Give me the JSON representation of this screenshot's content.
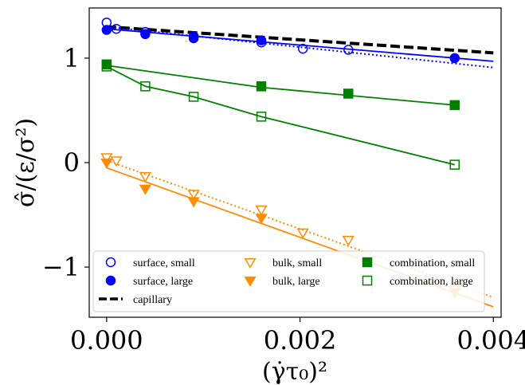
{
  "chart_data": {
    "type": "scatter",
    "xlabel": "(γ̇τ₀)²",
    "ylabel": "σ̂/(ε/σ²)",
    "xlim": [
      -0.00018,
      0.00408
    ],
    "ylim": [
      -1.48,
      1.48
    ],
    "x_ticks": [
      0.0,
      0.002,
      0.004
    ],
    "x_tick_labels": [
      "0.000",
      "0.002",
      "0.004"
    ],
    "y_ticks": [
      -1,
      0,
      1
    ],
    "y_tick_labels": [
      "−1",
      "0",
      "1"
    ],
    "grid": false,
    "legend_position": "lower-center",
    "series": [
      {
        "name": "surface, small",
        "marker": "circle-open",
        "color": "#0000ff",
        "points": [
          [
            0.0,
            1.34
          ],
          [
            0.0001,
            1.28
          ],
          [
            0.0004,
            1.25
          ],
          [
            0.0009,
            1.21
          ],
          [
            0.0016,
            1.15
          ],
          [
            0.00203,
            1.09
          ],
          [
            0.0025,
            1.08
          ]
        ]
      },
      {
        "name": "surface, large",
        "marker": "circle-filled",
        "color": "#0000ff",
        "points": [
          [
            0.0,
            1.27
          ],
          [
            0.0004,
            1.23
          ],
          [
            0.0009,
            1.19
          ],
          [
            0.0016,
            1.17
          ],
          [
            0.0036,
            1.0
          ]
        ]
      },
      {
        "name": "bulk, small",
        "marker": "triangle-down-open",
        "color": "#ff8c00",
        "points": [
          [
            0.0,
            0.05
          ],
          [
            0.0001,
            0.02
          ],
          [
            0.0004,
            -0.13
          ],
          [
            0.0009,
            -0.3
          ],
          [
            0.0016,
            -0.45
          ],
          [
            0.00203,
            -0.67
          ],
          [
            0.0025,
            -0.74
          ],
          [
            0.0036,
            -1.21
          ]
        ]
      },
      {
        "name": "bulk, large",
        "marker": "triangle-down-filled",
        "color": "#ff8c00",
        "points": [
          [
            0.0,
            0.0
          ],
          [
            0.0004,
            -0.25
          ],
          [
            0.0009,
            -0.37
          ],
          [
            0.0016,
            -0.53
          ],
          [
            0.0036,
            -1.24
          ]
        ]
      },
      {
        "name": "combination, small",
        "marker": "square-filled",
        "color": "#008000",
        "points": [
          [
            0.0,
            0.94
          ],
          [
            0.0016,
            0.73
          ],
          [
            0.0025,
            0.66
          ],
          [
            0.0036,
            0.55
          ]
        ]
      },
      {
        "name": "combination, large",
        "marker": "square-open",
        "color": "#008000",
        "points": [
          [
            0.0,
            0.92
          ],
          [
            0.0004,
            0.73
          ],
          [
            0.0009,
            0.63
          ],
          [
            0.0016,
            0.44
          ],
          [
            0.0036,
            -0.02
          ]
        ]
      }
    ],
    "lines": [
      {
        "name": "capillary",
        "style": "dashed",
        "color": "#000000",
        "width": 4,
        "points": [
          [
            0.0,
            1.3
          ],
          [
            0.004,
            1.05
          ]
        ]
      },
      {
        "style": "solid",
        "color": "#0000ff",
        "width": 1.8,
        "points": [
          [
            0.0,
            1.28
          ],
          [
            0.004,
            0.97
          ]
        ]
      },
      {
        "style": "dotted",
        "color": "#0000ff",
        "width": 2,
        "points": [
          [
            0.0,
            1.3
          ],
          [
            0.004,
            0.91
          ]
        ]
      },
      {
        "style": "solid",
        "color": "#008000",
        "width": 1.8,
        "points": [
          [
            0.0,
            0.93
          ],
          [
            0.0016,
            0.72
          ],
          [
            0.0036,
            0.55
          ]
        ]
      },
      {
        "style": "solid",
        "color": "#008000",
        "width": 1.8,
        "points": [
          [
            0.0,
            0.92
          ],
          [
            0.0004,
            0.73
          ],
          [
            0.0009,
            0.63
          ],
          [
            0.0016,
            0.44
          ],
          [
            0.0036,
            -0.02
          ]
        ]
      },
      {
        "style": "solid",
        "color": "#ff8c00",
        "width": 1.8,
        "points": [
          [
            0.0,
            -0.05
          ],
          [
            0.004,
            -1.38
          ]
        ]
      },
      {
        "style": "dotted",
        "color": "#ff8c00",
        "width": 2,
        "points": [
          [
            0.0,
            0.02
          ],
          [
            0.004,
            -1.29
          ]
        ]
      }
    ],
    "legend": [
      {
        "label": "surface, small",
        "marker": "circle-open",
        "color": "#0000ff"
      },
      {
        "label": "bulk, small",
        "marker": "triangle-down-open",
        "color": "#ff8c00"
      },
      {
        "label": "combination, small",
        "marker": "square-filled",
        "color": "#008000"
      },
      {
        "label": "surface, large",
        "marker": "circle-filled",
        "color": "#0000ff"
      },
      {
        "label": "bulk, large",
        "marker": "triangle-down-filled",
        "color": "#ff8c00"
      },
      {
        "label": "combination, large",
        "marker": "square-open",
        "color": "#008000"
      },
      {
        "label": "capillary",
        "marker": "dashed-line",
        "color": "#000000"
      }
    ]
  }
}
